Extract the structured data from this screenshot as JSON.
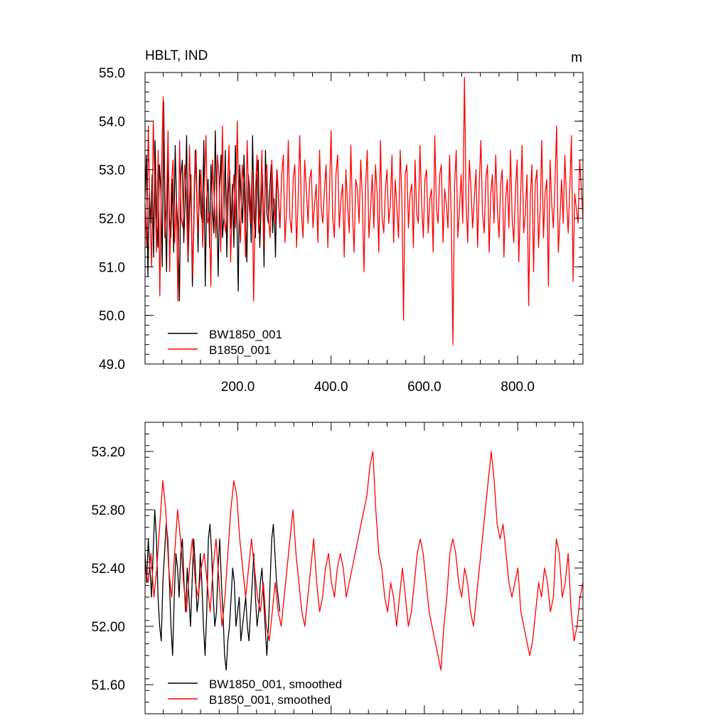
{
  "colors": {
    "BW1850_001": "#000000",
    "B1850_001": "#ff0000"
  },
  "chart_data": [
    {
      "type": "line",
      "title": "HBLT, IND",
      "units_label": "m",
      "xlim": [
        1,
        940
      ],
      "ylim": [
        49.0,
        55.0
      ],
      "x_ticks": [
        200,
        400,
        600,
        800
      ],
      "x_tick_labels": [
        "200.0",
        "400.0",
        "600.0",
        "800.0"
      ],
      "y_ticks": [
        49,
        50,
        51,
        52,
        53,
        54,
        55
      ],
      "y_tick_labels": [
        "49.0",
        "50.0",
        "51.0",
        "52.0",
        "53.0",
        "54.0",
        "55.0"
      ],
      "legend_position": "bottom-left",
      "series": [
        {
          "name": "BW1850_001",
          "color": "#000000",
          "x_start": 1,
          "values": [
            52.4,
            53.3,
            50.8,
            52.5,
            51.9,
            52.9,
            51.2,
            53.6,
            52.1,
            51.4,
            53.1,
            52.6,
            51.0,
            54.4,
            52.2,
            50.9,
            53.4,
            52.0,
            51.6,
            52.8,
            51.3,
            53.5,
            52.3,
            51.8,
            50.3,
            52.9,
            53.2,
            51.5,
            52.4,
            53.7,
            51.1,
            52.2,
            52.9,
            50.6,
            51.8,
            53.4,
            52.6,
            51.3,
            53.0,
            52.1,
            51.9,
            53.6,
            50.6,
            52.4,
            52.8,
            51.4,
            53.1,
            52.2,
            51.7,
            53.8,
            52.3,
            50.8,
            52.6,
            53.3,
            51.6,
            52.0,
            53.4,
            51.2,
            52.5,
            53.0,
            51.8,
            52.7,
            51.4,
            53.5,
            52.1,
            50.5,
            53.1,
            52.4,
            51.9,
            53.3,
            52.2,
            51.1,
            52.9,
            52.6,
            51.5,
            53.7,
            52.0,
            51.6,
            52.8,
            53.2,
            51.4,
            52.3,
            52.9,
            51.0,
            53.4,
            52.1,
            51.9,
            52.6,
            53.1,
            51.7,
            52.4,
            51.2,
            53.0,
            52.5,
            51.8
          ]
        },
        {
          "name": "B1850_001",
          "color": "#ff0000",
          "x_start": 1,
          "values": [
            52.3,
            51.4,
            53.9,
            52.1,
            51.0,
            54.0,
            52.6,
            51.3,
            53.4,
            50.4,
            53.0,
            54.5,
            51.6,
            52.2,
            53.8,
            50.9,
            52.7,
            53.2,
            51.5,
            52.4,
            50.3,
            53.6,
            52.0,
            51.8,
            53.1,
            52.5,
            51.2,
            53.5,
            52.2,
            50.8,
            52.9,
            53.4,
            51.7,
            52.3,
            53.0,
            51.4,
            52.6,
            53.7,
            51.9,
            52.1,
            50.6,
            53.2,
            52.4,
            51.6,
            53.3,
            52.8,
            51.3,
            53.9,
            52.0,
            51.7,
            52.6,
            53.5,
            51.1,
            52.3,
            52.9,
            51.8,
            54.0,
            52.2,
            51.5,
            53.1,
            52.7,
            51.2,
            53.6,
            52.4,
            51.9,
            53.0,
            50.3,
            52.5,
            53.3,
            51.7,
            52.2,
            53.4,
            51.4,
            52.8,
            53.1,
            52.0,
            51.6,
            53.2,
            52.3,
            51.9,
            53.0,
            52.5,
            51.8,
            52.9,
            53.3,
            51.5,
            52.2,
            53.6,
            52.0,
            51.7,
            52.8,
            53.1,
            51.4,
            52.4,
            53.7,
            52.1,
            51.6,
            53.2,
            52.6,
            51.9,
            52.8,
            53.0,
            51.8,
            52.3,
            52.7,
            51.5,
            53.4,
            52.2,
            51.9,
            52.6,
            53.1,
            51.4,
            52.5,
            53.8,
            52.0,
            51.6,
            52.9,
            53.3,
            51.8,
            52.4,
            52.7,
            51.2,
            53.0,
            52.3,
            51.7,
            53.5,
            52.1,
            51.3,
            52.8,
            52.6,
            51.9,
            53.2,
            52.4,
            50.9,
            52.7,
            53.4,
            51.6,
            52.2,
            52.9,
            51.8,
            53.1,
            52.5,
            51.3,
            53.6,
            52.0,
            51.7,
            52.6,
            53.0,
            51.9,
            52.3,
            53.3,
            51.5,
            52.8,
            52.2,
            51.6,
            53.4,
            52.4,
            49.9,
            52.9,
            53.1,
            51.8,
            52.5,
            52.7,
            51.4,
            53.2,
            52.1,
            51.9,
            53.5,
            52.3,
            51.6,
            52.8,
            53.0,
            51.7,
            52.4,
            52.6,
            51.3,
            53.7,
            52.2,
            51.9,
            52.9,
            53.1,
            51.5,
            52.6,
            52.3,
            51.8,
            53.3,
            52.0,
            49.4,
            52.7,
            53.4,
            51.6,
            52.2,
            52.9,
            51.9,
            54.9,
            52.3,
            51.5,
            53.2,
            52.6,
            51.8,
            52.4,
            53.0,
            51.4,
            52.7,
            53.6,
            52.1,
            51.7,
            52.8,
            53.1,
            51.3,
            52.5,
            52.9,
            51.9,
            53.3,
            52.2,
            51.6,
            52.7,
            53.0,
            51.2,
            52.4,
            52.8,
            51.8,
            53.4,
            52.0,
            51.5,
            52.6,
            53.2,
            51.1,
            52.3,
            53.5,
            51.7,
            52.1,
            52.9,
            50.2,
            52.4,
            53.1,
            50.9,
            52.7,
            53.0,
            51.4,
            52.2,
            53.6,
            51.6,
            52.5,
            52.8,
            50.6,
            53.2,
            52.3,
            51.8,
            52.7,
            53.9,
            51.3,
            52.0,
            52.8,
            51.9,
            53.3,
            52.4,
            51.7,
            52.6,
            53.7,
            50.7,
            52.5,
            52.2,
            51.9,
            53.2,
            52.6,
            52.0
          ]
        }
      ]
    },
    {
      "type": "line",
      "xlim": [
        1,
        940
      ],
      "ylim": [
        51.4,
        53.4
      ],
      "x_ticks": [
        200,
        400,
        600,
        800
      ],
      "y_ticks": [
        51.6,
        52.0,
        52.4,
        52.8,
        53.2
      ],
      "y_tick_labels": [
        "51.60",
        "52.00",
        "52.40",
        "52.80",
        "53.20"
      ],
      "legend_position": "bottom-left",
      "series": [
        {
          "name": "BW1850_001, smoothed",
          "color": "#000000",
          "x_start": 1,
          "values": [
            52.5,
            52.3,
            52.6,
            52.4,
            52.2,
            52.5,
            52.8,
            52.6,
            52.2,
            52.0,
            51.9,
            52.3,
            52.5,
            52.7,
            52.6,
            52.3,
            52.0,
            51.8,
            52.2,
            52.5,
            52.4,
            52.2,
            52.5,
            52.6,
            52.3,
            52.1,
            52.4,
            52.2,
            52.0,
            52.3,
            52.6,
            52.4,
            52.1,
            52.2,
            52.5,
            52.3,
            52.0,
            51.8,
            52.1,
            52.6,
            52.7,
            52.5,
            52.2,
            52.0,
            52.1,
            52.4,
            52.6,
            52.3,
            52.1,
            51.8,
            51.7,
            51.9,
            52.0,
            52.2,
            52.4,
            52.3,
            52.0,
            52.1,
            52.2,
            51.9,
            52.0,
            52.1,
            52.2,
            52.0,
            51.9,
            52.1,
            52.3,
            52.5,
            52.2,
            52.0,
            52.1,
            52.3,
            52.4,
            52.2,
            52.0,
            51.8,
            52.0,
            52.3,
            52.6,
            52.7,
            52.5,
            52.3,
            52.2,
            52.1
          ]
        },
        {
          "name": "B1850_001, smoothed",
          "color": "#ff0000",
          "x_start": 1,
          "values": [
            52.4,
            52.3,
            52.5,
            52.2,
            52.4,
            52.7,
            53.0,
            52.8,
            52.4,
            52.2,
            52.5,
            52.8,
            52.6,
            52.3,
            52.1,
            52.4,
            52.6,
            52.3,
            52.2,
            52.4,
            52.5,
            52.3,
            52.1,
            52.4,
            52.6,
            52.3,
            52.0,
            52.2,
            52.5,
            52.8,
            53.0,
            52.9,
            52.6,
            52.4,
            52.2,
            52.4,
            52.6,
            52.4,
            52.2,
            52.1,
            52.3,
            52.0,
            51.9,
            52.1,
            52.3,
            52.1,
            52.0,
            52.2,
            52.4,
            52.6,
            52.8,
            52.5,
            52.3,
            52.1,
            52.0,
            52.2,
            52.4,
            52.6,
            52.3,
            52.1,
            52.2,
            52.4,
            52.5,
            52.3,
            52.2,
            52.4,
            52.5,
            52.4,
            52.2,
            52.3,
            52.4,
            52.5,
            52.6,
            52.7,
            52.8,
            52.9,
            53.1,
            53.2,
            52.8,
            52.5,
            52.4,
            52.2,
            52.1,
            52.3,
            52.2,
            52.0,
            52.2,
            52.4,
            52.2,
            52.0,
            52.1,
            52.3,
            52.5,
            52.6,
            52.5,
            52.3,
            52.1,
            52.0,
            51.9,
            51.8,
            51.7,
            52.0,
            52.2,
            52.5,
            52.6,
            52.5,
            52.3,
            52.2,
            52.4,
            52.3,
            52.1,
            52.0,
            52.2,
            52.4,
            52.6,
            52.8,
            53.0,
            53.2,
            53.0,
            52.7,
            52.6,
            52.7,
            52.5,
            52.3,
            52.2,
            52.3,
            52.4,
            52.1,
            52.0,
            51.9,
            51.8,
            51.9,
            52.1,
            52.3,
            52.2,
            52.4,
            52.3,
            52.1,
            52.2,
            52.6,
            52.5,
            52.2,
            52.3,
            52.5,
            52.1,
            51.9,
            52.0,
            52.2,
            52.3
          ]
        }
      ]
    }
  ]
}
